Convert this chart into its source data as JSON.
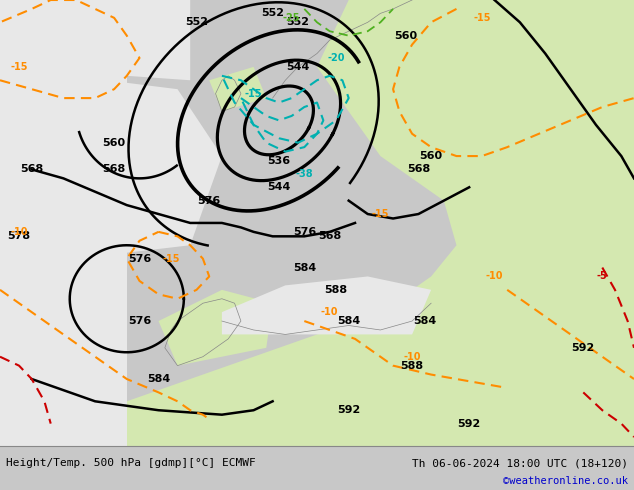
{
  "title_left": "Height/Temp. 500 hPa [gdmp][°C] ECMWF",
  "title_right": "Th 06-06-2024 18:00 UTC (18+120)",
  "credit": "©weatheronline.co.uk",
  "bg_land_light": "#d4e8b0",
  "bg_land_dark": "#b8d490",
  "bg_sea": "#e8e8e8",
  "bg_overall": "#e0e0e0",
  "black_contour_color": "#000000",
  "orange_contour_color": "#ff8c00",
  "red_contour_color": "#cc0000",
  "teal_contour_color": "#00b0b0",
  "green_contour_color": "#50b020",
  "text_color": "#000000",
  "figsize": [
    6.34,
    4.9
  ],
  "dpi": 100,
  "bottom_bar_color": "#d0d0d0"
}
